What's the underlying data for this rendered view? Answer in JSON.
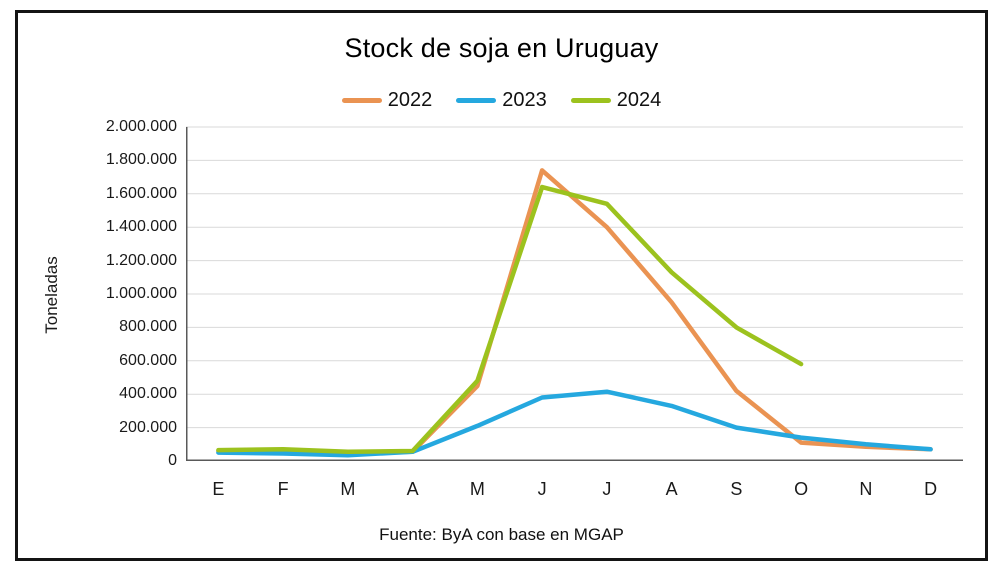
{
  "chart_data": {
    "type": "line",
    "title": "Stock de soja en Uruguay",
    "ylabel": "Toneladas",
    "xlabel": "",
    "source_note": "Fuente: ByA con base en MGAP",
    "categories": [
      "E",
      "F",
      "M",
      "A",
      "M",
      "J",
      "J",
      "A",
      "S",
      "O",
      "N",
      "D"
    ],
    "y_axis": {
      "min": 0,
      "max": 2000000,
      "step": 200000,
      "tick_labels": [
        "0",
        "200.000",
        "400.000",
        "600.000",
        "800.000",
        "1.000.000",
        "1.200.000",
        "1.400.000",
        "1.600.000",
        "1.800.000",
        "2.000.000"
      ]
    },
    "grid": true,
    "legend_position": "top",
    "series": [
      {
        "name": "2022",
        "color": "#EA9352",
        "values": [
          60000,
          55000,
          48000,
          55000,
          450000,
          1740000,
          1400000,
          950000,
          420000,
          110000,
          85000,
          70000
        ]
      },
      {
        "name": "2023",
        "color": "#25A8DF",
        "values": [
          50000,
          45000,
          35000,
          55000,
          210000,
          380000,
          415000,
          330000,
          200000,
          140000,
          100000,
          70000
        ]
      },
      {
        "name": "2024",
        "color": "#9CC21E",
        "values": [
          65000,
          70000,
          55000,
          60000,
          480000,
          1640000,
          1540000,
          1130000,
          800000,
          580000
        ]
      }
    ]
  },
  "style": {
    "gridline_color": "#D9D9D9",
    "axis_color": "#595959",
    "frame_border_color": "#141414",
    "line_width": 4.5
  }
}
